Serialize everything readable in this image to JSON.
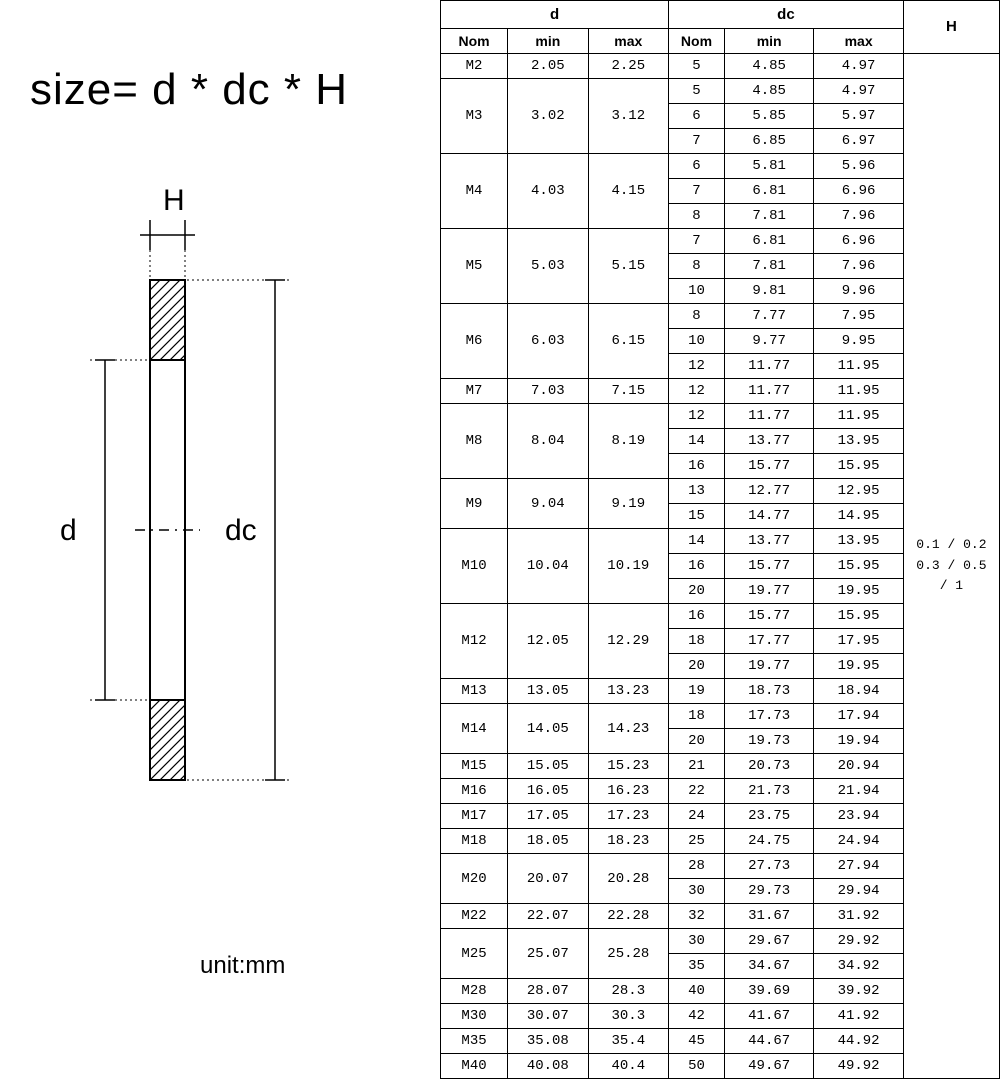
{
  "formula": "size= d * dc * H",
  "unit": "unit:mm",
  "labels": {
    "H": "H",
    "d": "d",
    "dc": "dc"
  },
  "headers": {
    "d": "d",
    "dc": "dc",
    "H": "H",
    "nom": "Nom",
    "min": "min",
    "max": "max"
  },
  "h_value": "0.1 / 0.2\n0.3 / 0.5\n/ 1",
  "groups": [
    {
      "nom": "M2",
      "dmin": "2.05",
      "dmax": "2.25",
      "dc": [
        {
          "nom": "5",
          "min": "4.85",
          "max": "4.97"
        }
      ]
    },
    {
      "nom": "M3",
      "dmin": "3.02",
      "dmax": "3.12",
      "dc": [
        {
          "nom": "5",
          "min": "4.85",
          "max": "4.97"
        },
        {
          "nom": "6",
          "min": "5.85",
          "max": "5.97"
        },
        {
          "nom": "7",
          "min": "6.85",
          "max": "6.97"
        }
      ]
    },
    {
      "nom": "M4",
      "dmin": "4.03",
      "dmax": "4.15",
      "dc": [
        {
          "nom": "6",
          "min": "5.81",
          "max": "5.96"
        },
        {
          "nom": "7",
          "min": "6.81",
          "max": "6.96"
        },
        {
          "nom": "8",
          "min": "7.81",
          "max": "7.96"
        }
      ]
    },
    {
      "nom": "M5",
      "dmin": "5.03",
      "dmax": "5.15",
      "dc": [
        {
          "nom": "7",
          "min": "6.81",
          "max": "6.96"
        },
        {
          "nom": "8",
          "min": "7.81",
          "max": "7.96"
        },
        {
          "nom": "10",
          "min": "9.81",
          "max": "9.96"
        }
      ]
    },
    {
      "nom": "M6",
      "dmin": "6.03",
      "dmax": "6.15",
      "dc": [
        {
          "nom": "8",
          "min": "7.77",
          "max": "7.95"
        },
        {
          "nom": "10",
          "min": "9.77",
          "max": "9.95"
        },
        {
          "nom": "12",
          "min": "11.77",
          "max": "11.95"
        }
      ]
    },
    {
      "nom": "M7",
      "dmin": "7.03",
      "dmax": "7.15",
      "dc": [
        {
          "nom": "12",
          "min": "11.77",
          "max": "11.95"
        }
      ]
    },
    {
      "nom": "M8",
      "dmin": "8.04",
      "dmax": "8.19",
      "dc": [
        {
          "nom": "12",
          "min": "11.77",
          "max": "11.95"
        },
        {
          "nom": "14",
          "min": "13.77",
          "max": "13.95"
        },
        {
          "nom": "16",
          "min": "15.77",
          "max": "15.95"
        }
      ]
    },
    {
      "nom": "M9",
      "dmin": "9.04",
      "dmax": "9.19",
      "dc": [
        {
          "nom": "13",
          "min": "12.77",
          "max": "12.95"
        },
        {
          "nom": "15",
          "min": "14.77",
          "max": "14.95"
        }
      ]
    },
    {
      "nom": "M10",
      "dmin": "10.04",
      "dmax": "10.19",
      "dc": [
        {
          "nom": "14",
          "min": "13.77",
          "max": "13.95"
        },
        {
          "nom": "16",
          "min": "15.77",
          "max": "15.95"
        },
        {
          "nom": "20",
          "min": "19.77",
          "max": "19.95"
        }
      ]
    },
    {
      "nom": "M12",
      "dmin": "12.05",
      "dmax": "12.29",
      "dc": [
        {
          "nom": "16",
          "min": "15.77",
          "max": "15.95"
        },
        {
          "nom": "18",
          "min": "17.77",
          "max": "17.95"
        },
        {
          "nom": "20",
          "min": "19.77",
          "max": "19.95"
        }
      ]
    },
    {
      "nom": "M13",
      "dmin": "13.05",
      "dmax": "13.23",
      "dc": [
        {
          "nom": "19",
          "min": "18.73",
          "max": "18.94"
        }
      ]
    },
    {
      "nom": "M14",
      "dmin": "14.05",
      "dmax": "14.23",
      "dc": [
        {
          "nom": "18",
          "min": "17.73",
          "max": "17.94"
        },
        {
          "nom": "20",
          "min": "19.73",
          "max": "19.94"
        }
      ]
    },
    {
      "nom": "M15",
      "dmin": "15.05",
      "dmax": "15.23",
      "dc": [
        {
          "nom": "21",
          "min": "20.73",
          "max": "20.94"
        }
      ]
    },
    {
      "nom": "M16",
      "dmin": "16.05",
      "dmax": "16.23",
      "dc": [
        {
          "nom": "22",
          "min": "21.73",
          "max": "21.94"
        }
      ]
    },
    {
      "nom": "M17",
      "dmin": "17.05",
      "dmax": "17.23",
      "dc": [
        {
          "nom": "24",
          "min": "23.75",
          "max": "23.94"
        }
      ]
    },
    {
      "nom": "M18",
      "dmin": "18.05",
      "dmax": "18.23",
      "dc": [
        {
          "nom": "25",
          "min": "24.75",
          "max": "24.94"
        }
      ]
    },
    {
      "nom": "M20",
      "dmin": "20.07",
      "dmax": "20.28",
      "dc": [
        {
          "nom": "28",
          "min": "27.73",
          "max": "27.94"
        },
        {
          "nom": "30",
          "min": "29.73",
          "max": "29.94"
        }
      ]
    },
    {
      "nom": "M22",
      "dmin": "22.07",
      "dmax": "22.28",
      "dc": [
        {
          "nom": "32",
          "min": "31.67",
          "max": "31.92"
        }
      ]
    },
    {
      "nom": "M25",
      "dmin": "25.07",
      "dmax": "25.28",
      "dc": [
        {
          "nom": "30",
          "min": "29.67",
          "max": "29.92"
        },
        {
          "nom": "35",
          "min": "34.67",
          "max": "34.92"
        }
      ]
    },
    {
      "nom": "M28",
      "dmin": "28.07",
      "dmax": "28.3",
      "dc": [
        {
          "nom": "40",
          "min": "39.69",
          "max": "39.92"
        }
      ]
    },
    {
      "nom": "M30",
      "dmin": "30.07",
      "dmax": "30.3",
      "dc": [
        {
          "nom": "42",
          "min": "41.67",
          "max": "41.92"
        }
      ]
    },
    {
      "nom": "M35",
      "dmin": "35.08",
      "dmax": "35.4",
      "dc": [
        {
          "nom": "45",
          "min": "44.67",
          "max": "44.92"
        }
      ]
    },
    {
      "nom": "M40",
      "dmin": "40.08",
      "dmax": "40.4",
      "dc": [
        {
          "nom": "50",
          "min": "49.67",
          "max": "49.92"
        }
      ]
    }
  ],
  "diagram": {
    "stroke": "#000",
    "stroke_width": 2,
    "hatch_spacing": 8,
    "font_family": "Arial, sans-serif",
    "font_size_label": 30
  }
}
